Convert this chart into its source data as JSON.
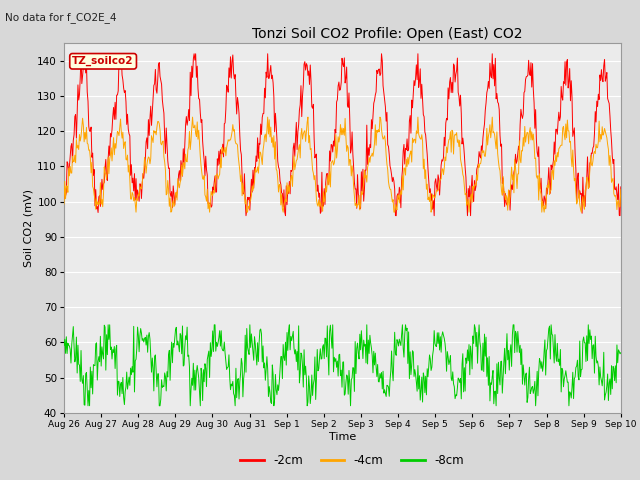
{
  "title": "Tonzi Soil CO2 Profile: Open (East) CO2",
  "subtitle": "No data for f_CO2E_4",
  "ylabel": "Soil CO2 (mV)",
  "xlabel": "Time",
  "watermark": "TZ_soilco2",
  "ylim": [
    40,
    145
  ],
  "yticks": [
    40,
    50,
    60,
    70,
    80,
    90,
    100,
    110,
    120,
    130,
    140
  ],
  "xtick_labels": [
    "Aug 26",
    "Aug 27",
    "Aug 28",
    "Aug 29",
    "Aug 30",
    "Aug 31",
    "Sep 1",
    "Sep 2",
    "Sep 3",
    "Sep 4",
    "Sep 5",
    "Sep 6",
    "Sep 7",
    "Sep 8",
    "Sep 9",
    "Sep 10"
  ],
  "series": [
    {
      "label": "-2cm",
      "color": "#ff0000"
    },
    {
      "label": "-4cm",
      "color": "#ffa500"
    },
    {
      "label": "-8cm",
      "color": "#00cc00"
    }
  ],
  "bg_color": "#d8d8d8",
  "plot_bg": "#ebebeb",
  "legend_bg": "#ffffe0",
  "legend_border": "#cc0000",
  "n_days": 15,
  "pts_per_day": 48,
  "red_base": 118,
  "red_amp": 18,
  "orange_base": 110,
  "orange_amp": 10,
  "green_base": 54,
  "green_amp": 7
}
